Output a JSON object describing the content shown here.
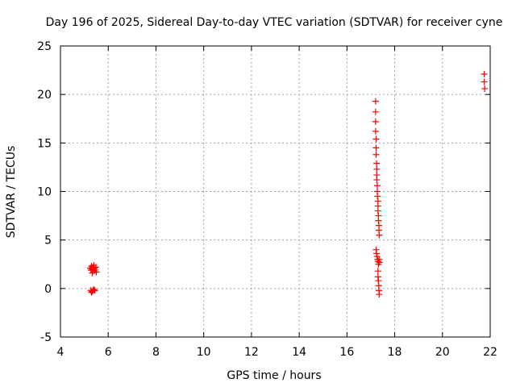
{
  "chart_data": {
    "type": "scatter",
    "title": "Day 196 of 2025, Sidereal Day-to-day VTEC variation (SDTVAR) for receiver cyne",
    "xlabel": "GPS time / hours",
    "ylabel": "SDTVAR / TECUs",
    "xlim": [
      4,
      22
    ],
    "ylim": [
      -5,
      25
    ],
    "grid": true,
    "x_ticks": [
      4,
      6,
      8,
      10,
      12,
      14,
      16,
      18,
      20,
      22
    ],
    "y_ticks": [
      -5,
      0,
      5,
      10,
      15,
      20,
      25
    ],
    "marker": "plus",
    "marker_color": "#ff0000",
    "points": [
      [
        5.25,
        2.1
      ],
      [
        5.28,
        1.9
      ],
      [
        5.3,
        2.3
      ],
      [
        5.32,
        2.0
      ],
      [
        5.35,
        2.2
      ],
      [
        5.38,
        1.8
      ],
      [
        5.4,
        2.4
      ],
      [
        5.42,
        2.1
      ],
      [
        5.45,
        1.9
      ],
      [
        5.48,
        2.2
      ],
      [
        5.5,
        1.7
      ],
      [
        5.33,
        1.6
      ],
      [
        5.27,
        -0.2
      ],
      [
        5.3,
        -0.4
      ],
      [
        5.33,
        -0.3
      ],
      [
        5.36,
        -0.2
      ],
      [
        5.4,
        -0.1
      ],
      [
        5.44,
        -0.2
      ],
      [
        17.2,
        19.3
      ],
      [
        17.2,
        18.2
      ],
      [
        17.2,
        17.2
      ],
      [
        17.2,
        16.2
      ],
      [
        17.22,
        15.4
      ],
      [
        17.22,
        14.5
      ],
      [
        17.22,
        13.8
      ],
      [
        17.24,
        12.9
      ],
      [
        17.25,
        12.3
      ],
      [
        17.25,
        11.7
      ],
      [
        17.25,
        11.2
      ],
      [
        17.27,
        10.6
      ],
      [
        17.27,
        10.0
      ],
      [
        17.28,
        9.5
      ],
      [
        17.3,
        9.0
      ],
      [
        17.3,
        8.5
      ],
      [
        17.3,
        8.0
      ],
      [
        17.32,
        7.5
      ],
      [
        17.32,
        7.0
      ],
      [
        17.34,
        6.5
      ],
      [
        17.34,
        6.0
      ],
      [
        17.35,
        5.5
      ],
      [
        17.22,
        4.0
      ],
      [
        17.24,
        3.6
      ],
      [
        17.26,
        3.3
      ],
      [
        17.28,
        3.0
      ],
      [
        17.3,
        2.8
      ],
      [
        17.32,
        2.5
      ],
      [
        17.35,
        3.0
      ],
      [
        17.36,
        2.7
      ],
      [
        17.3,
        1.8
      ],
      [
        17.3,
        1.2
      ],
      [
        17.32,
        0.8
      ],
      [
        17.33,
        0.3
      ],
      [
        17.34,
        -0.2
      ],
      [
        17.35,
        -0.6
      ],
      [
        21.75,
        22.1
      ],
      [
        21.75,
        21.3
      ],
      [
        21.77,
        20.6
      ]
    ]
  }
}
